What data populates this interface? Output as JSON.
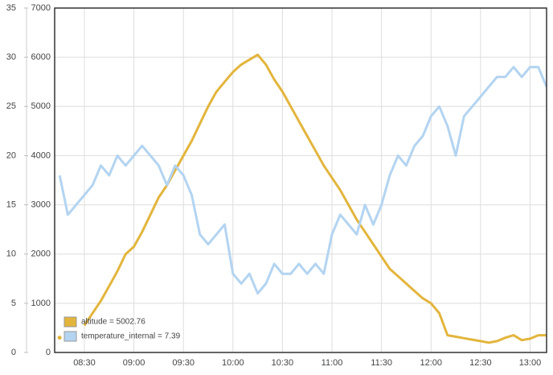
{
  "chart_data": {
    "type": "line",
    "x": [
      495,
      500,
      505,
      510,
      515,
      520,
      525,
      530,
      535,
      540,
      545,
      550,
      555,
      560,
      565,
      570,
      575,
      580,
      585,
      590,
      595,
      600,
      605,
      610,
      615,
      620,
      625,
      630,
      635,
      640,
      645,
      650,
      655,
      660,
      665,
      670,
      675,
      680,
      685,
      690,
      695,
      700,
      705,
      710,
      715,
      720,
      725,
      730,
      735,
      740,
      745,
      750,
      755,
      760,
      765,
      770,
      775,
      780,
      785,
      790
    ],
    "xlim": [
      492,
      790
    ],
    "xticks": [
      {
        "value": 510,
        "label": "08:30"
      },
      {
        "value": 540,
        "label": "09:00"
      },
      {
        "value": 570,
        "label": "09:30"
      },
      {
        "value": 600,
        "label": "10:00"
      },
      {
        "value": 630,
        "label": "10:30"
      },
      {
        "value": 660,
        "label": "11:00"
      },
      {
        "value": 690,
        "label": "11:30"
      },
      {
        "value": 720,
        "label": "12:00"
      },
      {
        "value": 750,
        "label": "12:30"
      },
      {
        "value": 780,
        "label": "13:00"
      }
    ],
    "ylim": [
      0,
      35
    ],
    "yticks": [
      0,
      5,
      10,
      15,
      20,
      25,
      30,
      35
    ],
    "y2lim": [
      0,
      7000
    ],
    "y2ticks": [
      0,
      1000,
      2000,
      3000,
      4000,
      5000,
      6000,
      7000
    ],
    "grid": true,
    "legend": "lower left",
    "series": [
      {
        "name": "altitude = 5002.76",
        "color": "#e3b53c",
        "axis": "y2",
        "values": [
          300,
          null,
          null,
          550,
          800,
          1050,
          1350,
          1650,
          2000,
          2150,
          2450,
          2800,
          3150,
          3400,
          3700,
          4000,
          4300,
          4650,
          5000,
          5300,
          5500,
          5700,
          5850,
          5950,
          6050,
          5850,
          5550,
          5300,
          5000,
          4700,
          4400,
          4100,
          3800,
          3550,
          3300,
          3000,
          2700,
          2450,
          2200,
          1950,
          1700,
          1550,
          1400,
          1250,
          1100,
          1000,
          800,
          350,
          320,
          290,
          260,
          230,
          200,
          230,
          300,
          350,
          250,
          280,
          350,
          350
        ]
      },
      {
        "name": "temperature_internal = 7.39",
        "color": "#b3d4f1",
        "values": [
          18,
          14,
          15,
          16,
          17,
          19,
          18,
          20,
          19,
          20,
          21,
          20,
          19,
          17,
          19,
          18,
          16,
          12,
          11,
          12,
          13,
          8,
          7,
          8,
          6,
          7,
          9,
          8,
          8,
          9,
          8,
          9,
          8,
          12,
          14,
          13,
          12,
          15,
          13,
          15,
          18,
          20,
          19,
          21,
          22,
          24,
          25,
          23,
          20,
          24,
          25,
          26,
          27,
          28,
          28,
          29,
          28,
          29,
          29,
          27
        ]
      }
    ]
  }
}
